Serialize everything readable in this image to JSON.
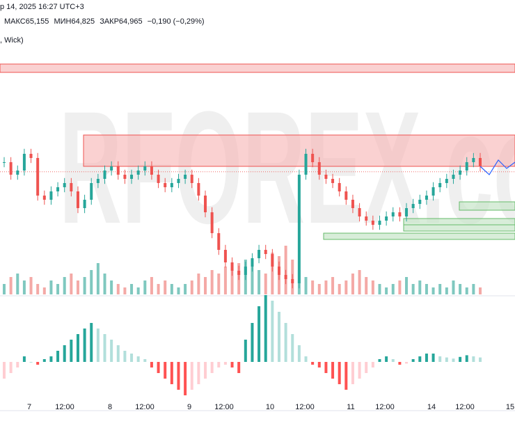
{
  "header": {
    "title": "р 14, 2025 16:27 UTC+3",
    "ohlc": {
      "high_label": "МАКС",
      "high": "65,155",
      "low_label": "МИН",
      "low": "64,825",
      "close_label": "ЗАКР",
      "close": "64,965",
      "change": "−0,190 (−0,29%)"
    },
    "indicator": ", Wick)"
  },
  "watermark": "RFOREX.co",
  "colors": {
    "up": "#26a69a",
    "down": "#ef5350",
    "up_volume": "#7fc8bf",
    "down_volume": "#f4a9a6",
    "macd_up_strong": "#26a69a",
    "macd_up_weak": "#b2dfdb",
    "macd_down_strong": "#ff5252",
    "macd_down_weak": "#ffcdd2",
    "resistance_zone": "#f7b3b3",
    "support_zone": "#c8e6c9"
  },
  "x_axis": {
    "labels": [
      "7",
      "12:00",
      "8",
      "12:00",
      "9",
      "12:00",
      "10",
      "12:00",
      "11",
      "12:00",
      "14",
      "12:00",
      "15"
    ]
  },
  "chart_data": {
    "type": "candlestick",
    "price": [
      65.7,
      65.4,
      65.5,
      65.9,
      65.8,
      64.9,
      64.8,
      65.0,
      65.1,
      65.2,
      65.0,
      64.6,
      64.8,
      65.2,
      65.3,
      65.5,
      65.6,
      65.4,
      65.3,
      65.4,
      65.5,
      65.6,
      65.4,
      65.2,
      65.1,
      65.2,
      65.3,
      65.4,
      65.2,
      64.9,
      64.5,
      64.0,
      63.6,
      63.3,
      63.1,
      63.0,
      63.2,
      63.4,
      63.6,
      63.5,
      63.2,
      63.0,
      62.9,
      62.8,
      65.4,
      65.9,
      65.7,
      65.4,
      65.3,
      65.2,
      65.0,
      64.8,
      64.6,
      64.4,
      64.3,
      64.2,
      64.3,
      64.4,
      64.5,
      64.4,
      64.6,
      64.7,
      64.8,
      64.9,
      65.1,
      65.2,
      65.3,
      65.4,
      65.5,
      65.7,
      65.8,
      65.6
    ],
    "volume": [
      3,
      5,
      6,
      4,
      5,
      3,
      2,
      4,
      3,
      5,
      6,
      4,
      5,
      7,
      9,
      6,
      4,
      3,
      2,
      3,
      2,
      4,
      5,
      3,
      4,
      3,
      2,
      3,
      4,
      6,
      5,
      7,
      6,
      8,
      7,
      9,
      10,
      8,
      7,
      6,
      12,
      11,
      14,
      10,
      7,
      5,
      4,
      3,
      4,
      5,
      3,
      4,
      6,
      7,
      5,
      4,
      3,
      2,
      3,
      4,
      5,
      3,
      4,
      3,
      2,
      3,
      2,
      4,
      3,
      2,
      3,
      2
    ],
    "macd": [
      -3,
      -2,
      -1,
      1,
      0,
      -0.5,
      0.5,
      1,
      2,
      3,
      4,
      5,
      6,
      7,
      6,
      5,
      4,
      3,
      2,
      1.5,
      1,
      0.5,
      -1,
      -2,
      -3,
      -4,
      -5,
      -6,
      -5,
      -4,
      -3,
      -2,
      -1,
      -0.5,
      -1,
      -2,
      4,
      7,
      10,
      12,
      11,
      9,
      7,
      5,
      3,
      1,
      -0.5,
      -1,
      -2,
      -3,
      -4,
      -5,
      -4,
      -3,
      -2,
      -1,
      0.5,
      1,
      0.5,
      -0.5,
      -0.3,
      0.5,
      1,
      1.5,
      1.5,
      1,
      0.8,
      0.6,
      0.9,
      1.2,
      1,
      0.8
    ],
    "resistance_zones": [
      [
        67.85,
        68.05
      ],
      [
        65.6,
        66.35
      ]
    ],
    "support_zones": [
      [
        64.55,
        64.75
      ],
      [
        64.2,
        64.35
      ],
      [
        64.05,
        64.2
      ],
      [
        63.85,
        64.0
      ]
    ],
    "forecast": [
      65.6,
      65.4,
      65.75,
      65.55,
      65.7
    ],
    "current_price_level": 65.47
  }
}
